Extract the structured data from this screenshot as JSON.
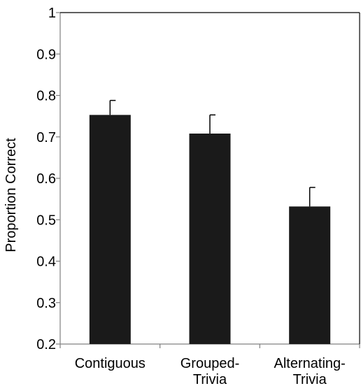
{
  "chart_data": {
    "type": "bar",
    "title": "",
    "xlabel": "",
    "ylabel": "Proportion Correct",
    "ylim": [
      0.2,
      1
    ],
    "yticks": [
      "0.2",
      "0.3",
      "0.4",
      "0.5",
      "0.6",
      "0.7",
      "0.8",
      "0.9",
      "1"
    ],
    "categories": [
      [
        "Contiguous"
      ],
      [
        "Grouped-",
        "Trivia"
      ],
      [
        "Alternating-",
        "Trivia"
      ]
    ],
    "values": [
      0.753,
      0.708,
      0.532
    ],
    "error_upper": [
      0.788,
      0.753,
      0.578
    ],
    "grid": false,
    "legend": "none",
    "colors": {
      "bar": "#1a1a1a",
      "axis": "#808080",
      "error": "#000000"
    }
  }
}
